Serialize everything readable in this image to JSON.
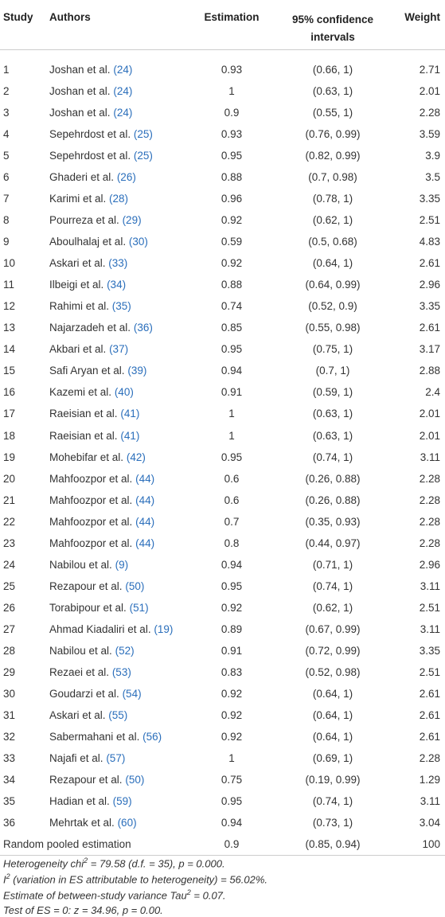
{
  "table": {
    "header": {
      "study": "Study",
      "authors": "Authors",
      "estimation": "Estimation",
      "ci": "95% confidence intervals",
      "weight": "Weight"
    },
    "rows": [
      {
        "study": 1,
        "authors": "Joshan et al.",
        "ref": "(24)",
        "estimation": 0.93,
        "ci": "(0.66, 1)",
        "weight": 2.71
      },
      {
        "study": 2,
        "authors": "Joshan et al.",
        "ref": "(24)",
        "estimation": 1,
        "ci": "(0.63, 1)",
        "weight": 2.01
      },
      {
        "study": 3,
        "authors": "Joshan et al.",
        "ref": "(24)",
        "estimation": 0.9,
        "ci": "(0.55, 1)",
        "weight": 2.28
      },
      {
        "study": 4,
        "authors": "Sepehrdost et al.",
        "ref": "(25)",
        "estimation": 0.93,
        "ci": "(0.76, 0.99)",
        "weight": 3.59
      },
      {
        "study": 5,
        "authors": "Sepehrdost et al.",
        "ref": "(25)",
        "estimation": 0.95,
        "ci": "(0.82, 0.99)",
        "weight": 3.9
      },
      {
        "study": 6,
        "authors": "Ghaderi et al.",
        "ref": "(26)",
        "estimation": 0.88,
        "ci": "(0.7, 0.98)",
        "weight": 3.5
      },
      {
        "study": 7,
        "authors": "Karimi et al.",
        "ref": "(28)",
        "estimation": 0.96,
        "ci": "(0.78, 1)",
        "weight": 3.35
      },
      {
        "study": 8,
        "authors": "Pourreza et al.",
        "ref": "(29)",
        "estimation": 0.92,
        "ci": "(0.62, 1)",
        "weight": 2.51
      },
      {
        "study": 9,
        "authors": "Aboulhalaj et al.",
        "ref": "(30)",
        "estimation": 0.59,
        "ci": "(0.5, 0.68)",
        "weight": 4.83
      },
      {
        "study": 10,
        "authors": "Askari et al.",
        "ref": "(33)",
        "estimation": 0.92,
        "ci": "(0.64, 1)",
        "weight": 2.61
      },
      {
        "study": 11,
        "authors": "Ilbeigi et al.",
        "ref": "(34)",
        "estimation": 0.88,
        "ci": "(0.64, 0.99)",
        "weight": 2.96
      },
      {
        "study": 12,
        "authors": "Rahimi et al.",
        "ref": "(35)",
        "estimation": 0.74,
        "ci": "(0.52, 0.9)",
        "weight": 3.35
      },
      {
        "study": 13,
        "authors": "Najarzadeh et al.",
        "ref": "(36)",
        "estimation": 0.85,
        "ci": "(0.55, 0.98)",
        "weight": 2.61
      },
      {
        "study": 14,
        "authors": "Akbari et al.",
        "ref": "(37)",
        "estimation": 0.95,
        "ci": "(0.75, 1)",
        "weight": 3.17
      },
      {
        "study": 15,
        "authors": "Safi Aryan et al.",
        "ref": "(39)",
        "estimation": 0.94,
        "ci": "(0.7, 1)",
        "weight": 2.88
      },
      {
        "study": 16,
        "authors": "Kazemi et al.",
        "ref": "(40)",
        "estimation": 0.91,
        "ci": "(0.59, 1)",
        "weight": 2.4
      },
      {
        "study": 17,
        "authors": "Raeisian et al.",
        "ref": "(41)",
        "estimation": 1,
        "ci": "(0.63, 1)",
        "weight": 2.01
      },
      {
        "study": 18,
        "authors": "Raeisian et al.",
        "ref": "(41)",
        "estimation": 1,
        "ci": "(0.63, 1)",
        "weight": 2.01
      },
      {
        "study": 19,
        "authors": "Mohebifar et al.",
        "ref": "(42)",
        "estimation": 0.95,
        "ci": "(0.74, 1)",
        "weight": 3.11
      },
      {
        "study": 20,
        "authors": "Mahfoozpor et al.",
        "ref": "(44)",
        "estimation": 0.6,
        "ci": "(0.26, 0.88)",
        "weight": 2.28
      },
      {
        "study": 21,
        "authors": "Mahfoozpor et al.",
        "ref": "(44)",
        "estimation": 0.6,
        "ci": "(0.26, 0.88)",
        "weight": 2.28
      },
      {
        "study": 22,
        "authors": "Mahfoozpor et al.",
        "ref": "(44)",
        "estimation": 0.7,
        "ci": "(0.35, 0.93)",
        "weight": 2.28
      },
      {
        "study": 23,
        "authors": "Mahfoozpor et al.",
        "ref": "(44)",
        "estimation": 0.8,
        "ci": "(0.44, 0.97)",
        "weight": 2.28
      },
      {
        "study": 24,
        "authors": "Nabilou et al.",
        "ref": "(9)",
        "estimation": 0.94,
        "ci": "(0.71, 1)",
        "weight": 2.96
      },
      {
        "study": 25,
        "authors": "Rezapour et al.",
        "ref": "(50)",
        "estimation": 0.95,
        "ci": "(0.74, 1)",
        "weight": 3.11
      },
      {
        "study": 26,
        "authors": "Torabipour et al.",
        "ref": "(51)",
        "estimation": 0.92,
        "ci": "(0.62, 1)",
        "weight": 2.51
      },
      {
        "study": 27,
        "authors": "Ahmad Kiadaliri et al.",
        "ref": "(19)",
        "estimation": 0.89,
        "ci": "(0.67, 0.99)",
        "weight": 3.11
      },
      {
        "study": 28,
        "authors": "Nabilou et al.",
        "ref": "(52)",
        "estimation": 0.91,
        "ci": "(0.72, 0.99)",
        "weight": 3.35
      },
      {
        "study": 29,
        "authors": "Rezaei et al.",
        "ref": "(53)",
        "estimation": 0.83,
        "ci": "(0.52, 0.98)",
        "weight": 2.51
      },
      {
        "study": 30,
        "authors": "Goudarzi et al.",
        "ref": "(54)",
        "estimation": 0.92,
        "ci": "(0.64, 1)",
        "weight": 2.61
      },
      {
        "study": 31,
        "authors": "Askari et al.",
        "ref": "(55)",
        "estimation": 0.92,
        "ci": "(0.64, 1)",
        "weight": 2.61
      },
      {
        "study": 32,
        "authors": "Sabermahani et al.",
        "ref": "(56)",
        "estimation": 0.92,
        "ci": "(0.64, 1)",
        "weight": 2.61
      },
      {
        "study": 33,
        "authors": "Najafi et al.",
        "ref": "(57)",
        "estimation": 1,
        "ci": "(0.69, 1)",
        "weight": 2.28
      },
      {
        "study": 34,
        "authors": "Rezapour et al.",
        "ref": "(50)",
        "estimation": 0.75,
        "ci": "(0.19, 0.99)",
        "weight": 1.29
      },
      {
        "study": 35,
        "authors": "Hadian et al.",
        "ref": "(59)",
        "estimation": 0.95,
        "ci": "(0.74, 1)",
        "weight": 3.11
      },
      {
        "study": 36,
        "authors": "Mehrtak et al.",
        "ref": "(60)",
        "estimation": 0.94,
        "ci": "(0.73, 1)",
        "weight": 3.04
      }
    ],
    "pooled": {
      "label": "Random pooled estimation",
      "estimation": 0.9,
      "ci": "(0.85, 0.94)",
      "weight": 100
    }
  },
  "footnotes": [
    {
      "before": "Heterogeneity chi",
      "sup": "2",
      "after": " = 79.58 (d.f. = 35), p = 0.000."
    },
    {
      "before": "I",
      "sup": "2",
      "after": " (variation in ES attributable to heterogeneity) = 56.02%."
    },
    {
      "before": "Estimate of between-study variance Tau",
      "sup": "2",
      "after": " = 0.07."
    },
    {
      "before": "Test of ES = 0: z = 34.96, p = 0.00."
    }
  ]
}
